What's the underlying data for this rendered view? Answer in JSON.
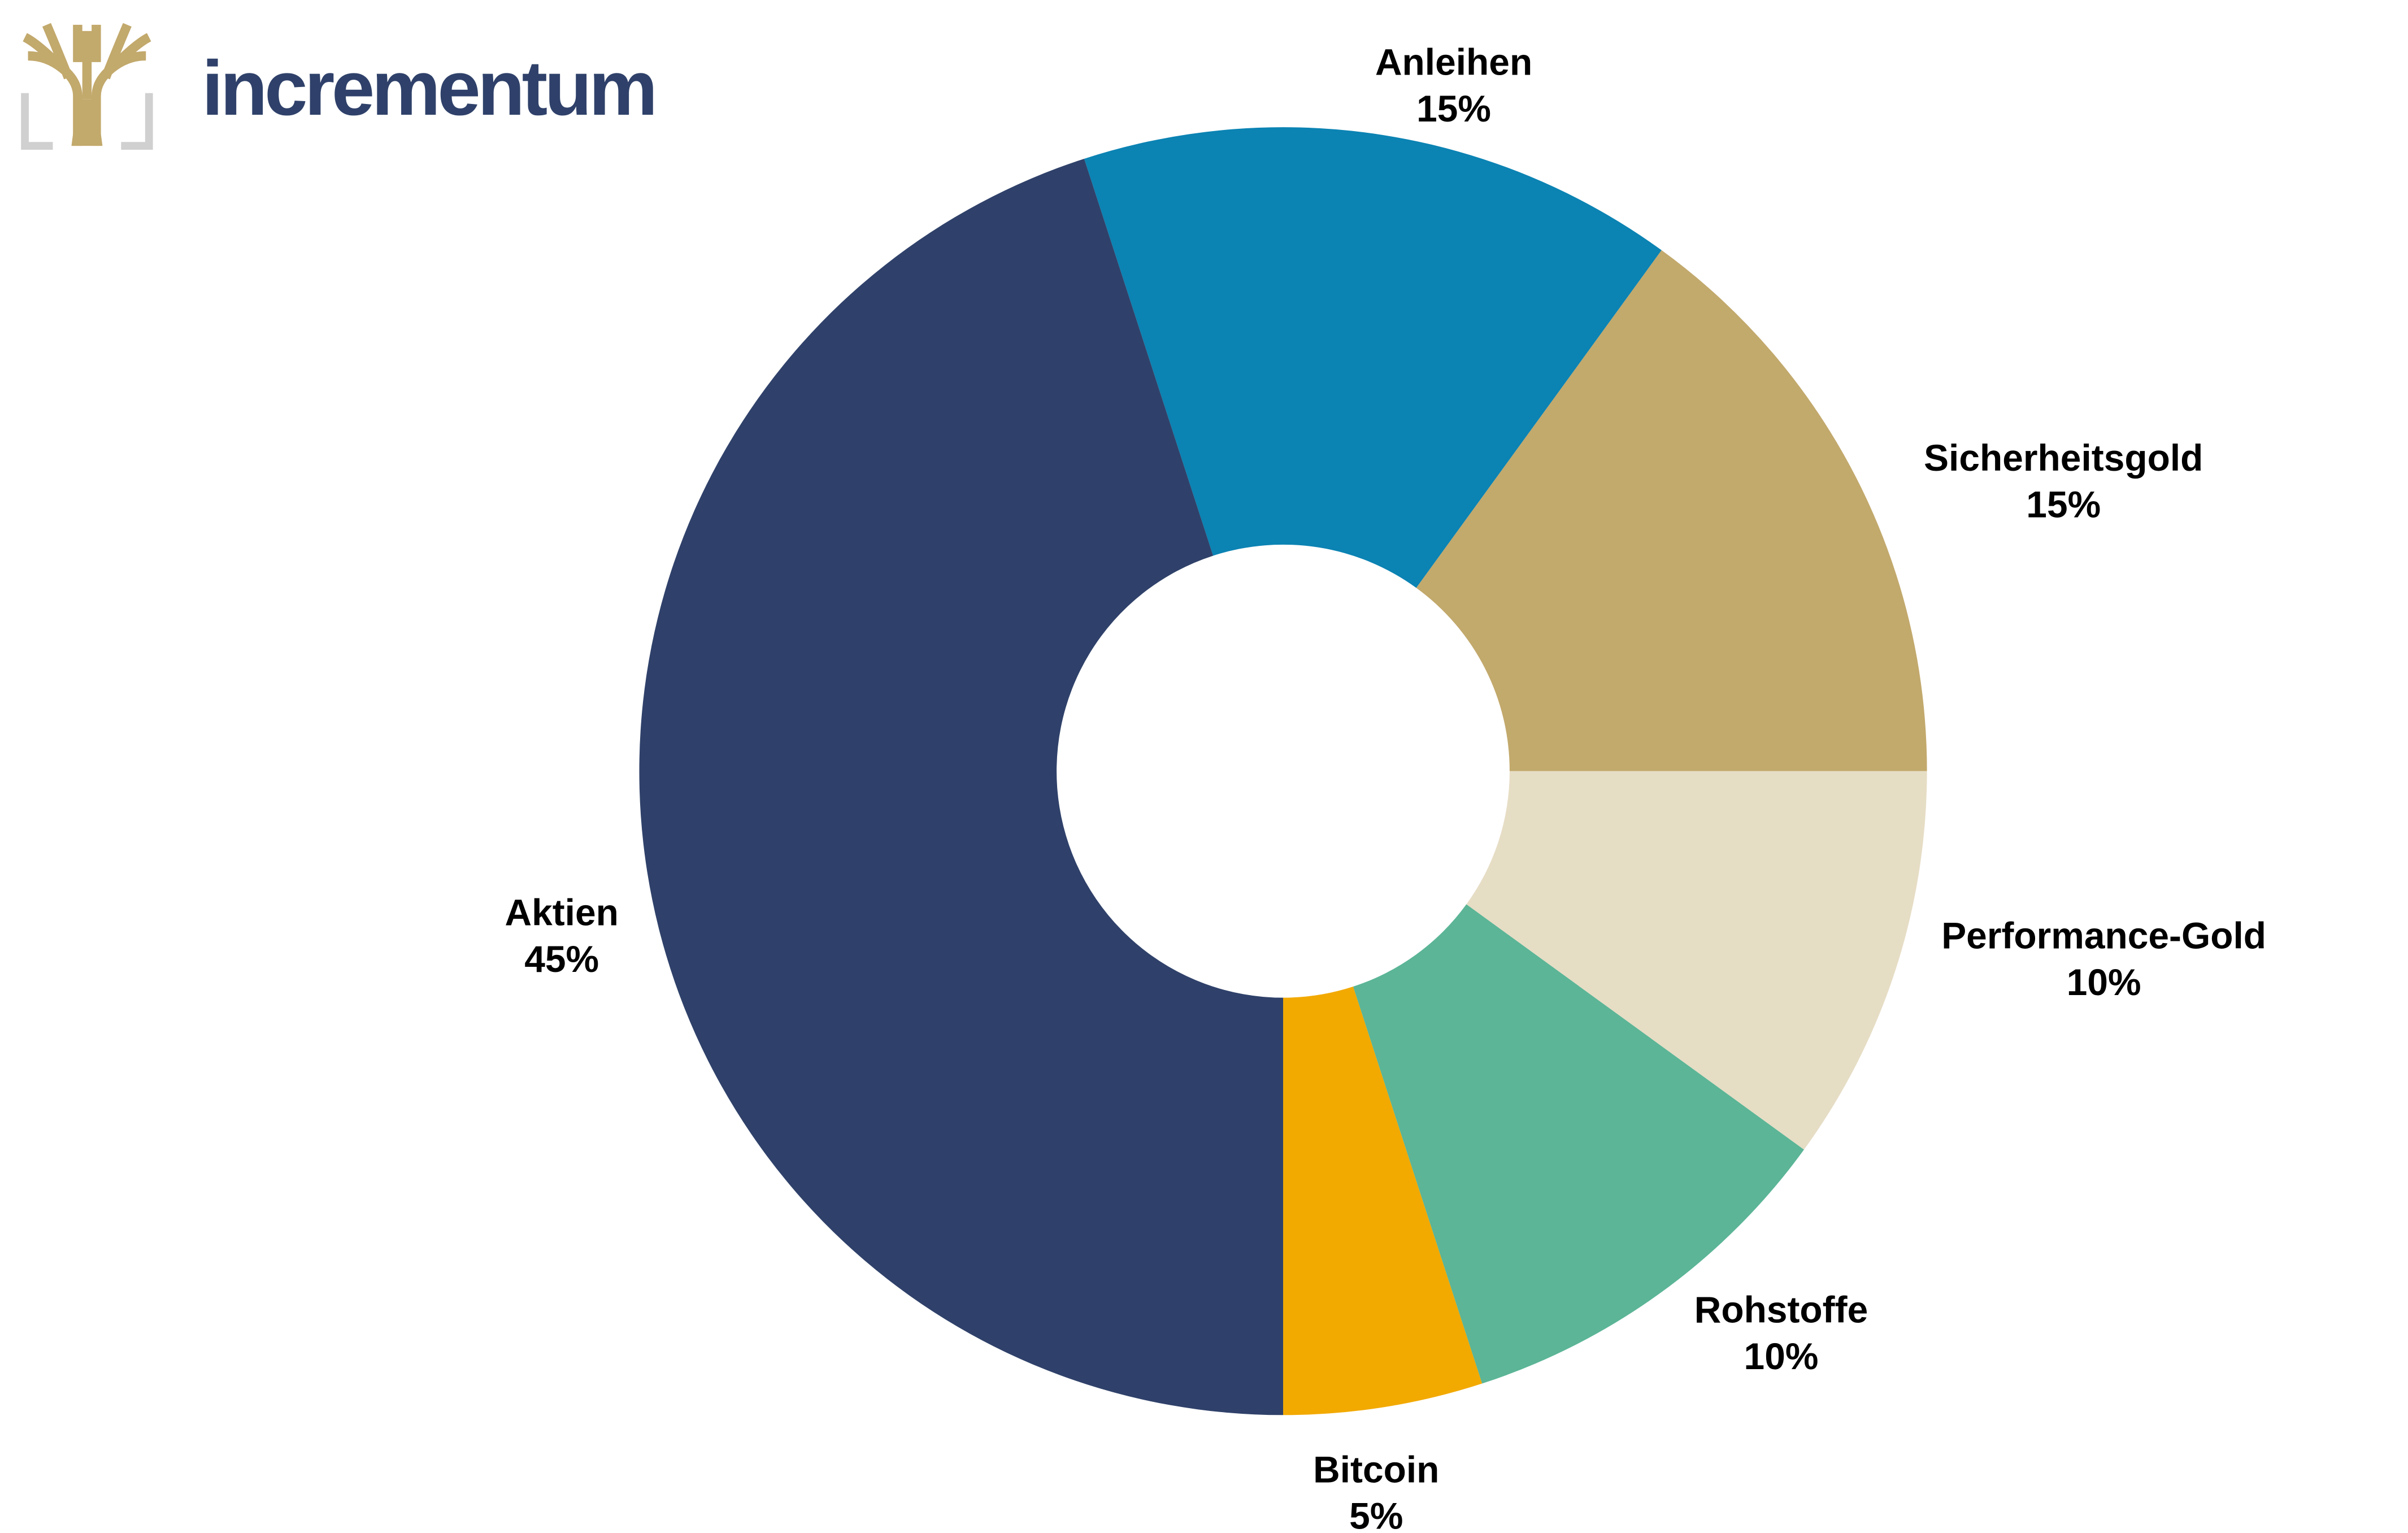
{
  "logo_text": "incrementum",
  "chart_data": {
    "type": "donut",
    "categories": [
      "Anleihen",
      "Sicherheitsgold",
      "Performance-Gold",
      "Rohstoffe",
      "Bitcoin",
      "Aktien"
    ],
    "values": [
      15,
      15,
      10,
      10,
      5,
      45
    ],
    "value_labels": [
      "15%",
      "15%",
      "10%",
      "10%",
      "5%",
      "45%"
    ],
    "colors": [
      "#0b83b3",
      "#c2a96c",
      "#e6ddc5",
      "#5bb596",
      "#f2a900",
      "#2f416a"
    ]
  }
}
